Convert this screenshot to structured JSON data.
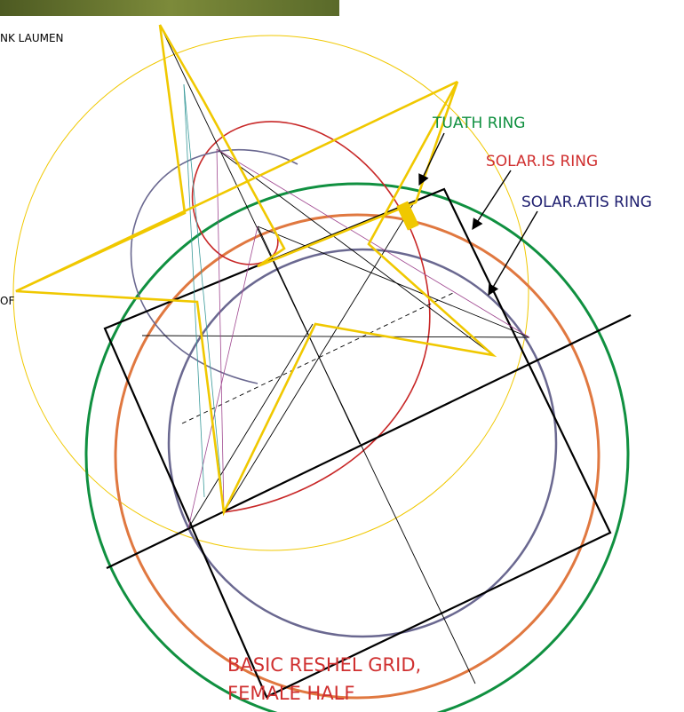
{
  "header": {
    "credit": "NK LAUMEN"
  },
  "labels": {
    "tuath_ring": "TUATH RING",
    "solar_is_ring": "SOLAR.IS RING",
    "solar_atis_ring": "SOLAR.ATIS RING",
    "side_fragment": "OF"
  },
  "caption": {
    "line1": "BASIC RESHEL GRID,",
    "line2": "FEMALE HALF"
  }
}
